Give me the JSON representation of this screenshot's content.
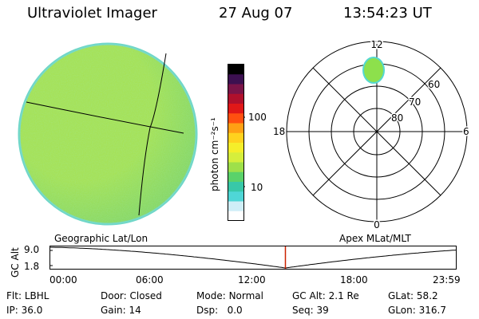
{
  "header": {
    "title": "Ultraviolet Imager",
    "date": "27 Aug 07",
    "time": "13:54:23 UT"
  },
  "colorbar": {
    "unit_label": "photon cm⁻²s⁻¹",
    "ticks": [
      {
        "label": "100",
        "value": 100
      },
      {
        "label": "10",
        "value": 10
      }
    ],
    "colors": [
      "#ffffff",
      "#cfeef7",
      "#4fd6d6",
      "#38c8a8",
      "#5ad26a",
      "#9ee04a",
      "#d6ee3c",
      "#f5ee2a",
      "#ffd21e",
      "#ffa014",
      "#ff5010",
      "#e01818",
      "#b0102c",
      "#7a1448",
      "#3c1050",
      "#000000"
    ]
  },
  "geo_panel": {
    "label": "Geographic Lat/Lon",
    "disk_color": "#a6e04a",
    "disk_shade_color": "#7fd35f",
    "limb_color": "#6fd6c8"
  },
  "polar_panel": {
    "label": "Apex MLat/MLT",
    "mlt_labels": {
      "top": "12",
      "left": "18",
      "right": "6",
      "bottom": "0"
    },
    "lat_labels": [
      "60",
      "70",
      "80"
    ],
    "blob_color": "#8de04c"
  },
  "timeline": {
    "axis_label": "GC Alt",
    "y_ticks": [
      "9.0",
      "1.8"
    ],
    "x_ticks": [
      "00:00",
      "06:00",
      "12:00",
      "18:00",
      "23:59"
    ],
    "current_time_hours": 13.906,
    "marker_color": "#cc2200"
  },
  "info": {
    "row1": [
      {
        "key": "Flt:",
        "value": "LBHL"
      },
      {
        "key": "Door:",
        "value": "Closed"
      },
      {
        "key": "Mode:",
        "value": "Normal"
      },
      {
        "key": "GC Alt:",
        "value": "2.1 Re"
      },
      {
        "key": "GLat:",
        "value": "58.2"
      }
    ],
    "row2": [
      {
        "key": "IP:",
        "value": "36.0"
      },
      {
        "key": "Gain:",
        "value": "14"
      },
      {
        "key": "Dsp:",
        "value": "0.0"
      },
      {
        "key": "Seq:",
        "value": "39"
      },
      {
        "key": "GLon:",
        "value": "316.7"
      }
    ]
  }
}
